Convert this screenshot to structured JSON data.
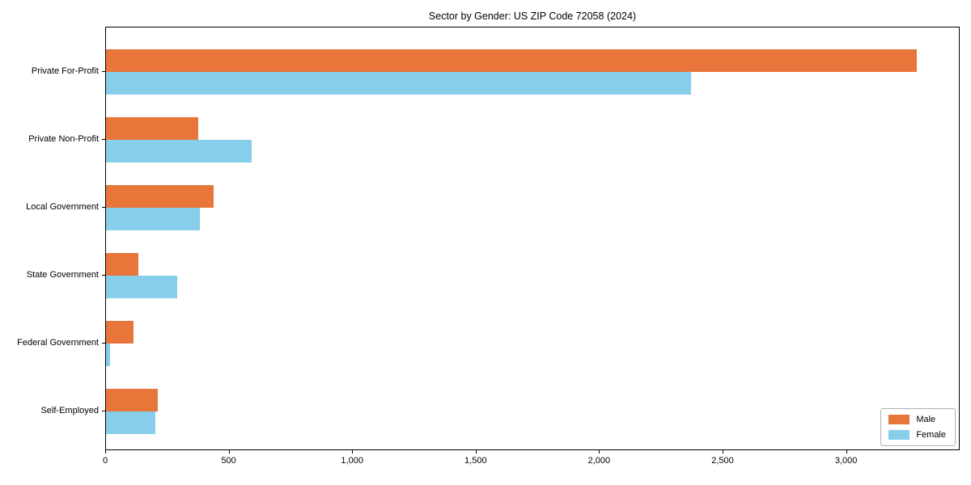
{
  "chart_data": {
    "type": "bar",
    "orientation": "horizontal",
    "title": "Sector by Gender: US ZIP Code 72058 (2024)",
    "categories": [
      "Private For-Profit",
      "Private Non-Profit",
      "Local Government",
      "State Government",
      "Federal Government",
      "Self-Employed"
    ],
    "series": [
      {
        "name": "Male",
        "color": "#E8763B",
        "values": [
          3290,
          375,
          435,
          130,
          110,
          210
        ]
      },
      {
        "name": "Female",
        "color": "#87CEEB",
        "values": [
          2375,
          590,
          380,
          290,
          15,
          200
        ]
      }
    ],
    "xlabel": "",
    "ylabel": "",
    "xlim": [
      0,
      3460
    ],
    "xticks": [
      0,
      500,
      1000,
      1500,
      2000,
      2500,
      3000
    ],
    "xtick_labels": [
      "0",
      "500",
      "1,000",
      "1,500",
      "2,000",
      "2,500",
      "3,000"
    ],
    "grid": false,
    "legend_position": "lower right",
    "frame_color": "#000000",
    "background_color": "#ffffff"
  },
  "legend": {
    "items": [
      {
        "label": "Male",
        "color": "#E8763B"
      },
      {
        "label": "Female",
        "color": "#87CEEB"
      }
    ]
  }
}
